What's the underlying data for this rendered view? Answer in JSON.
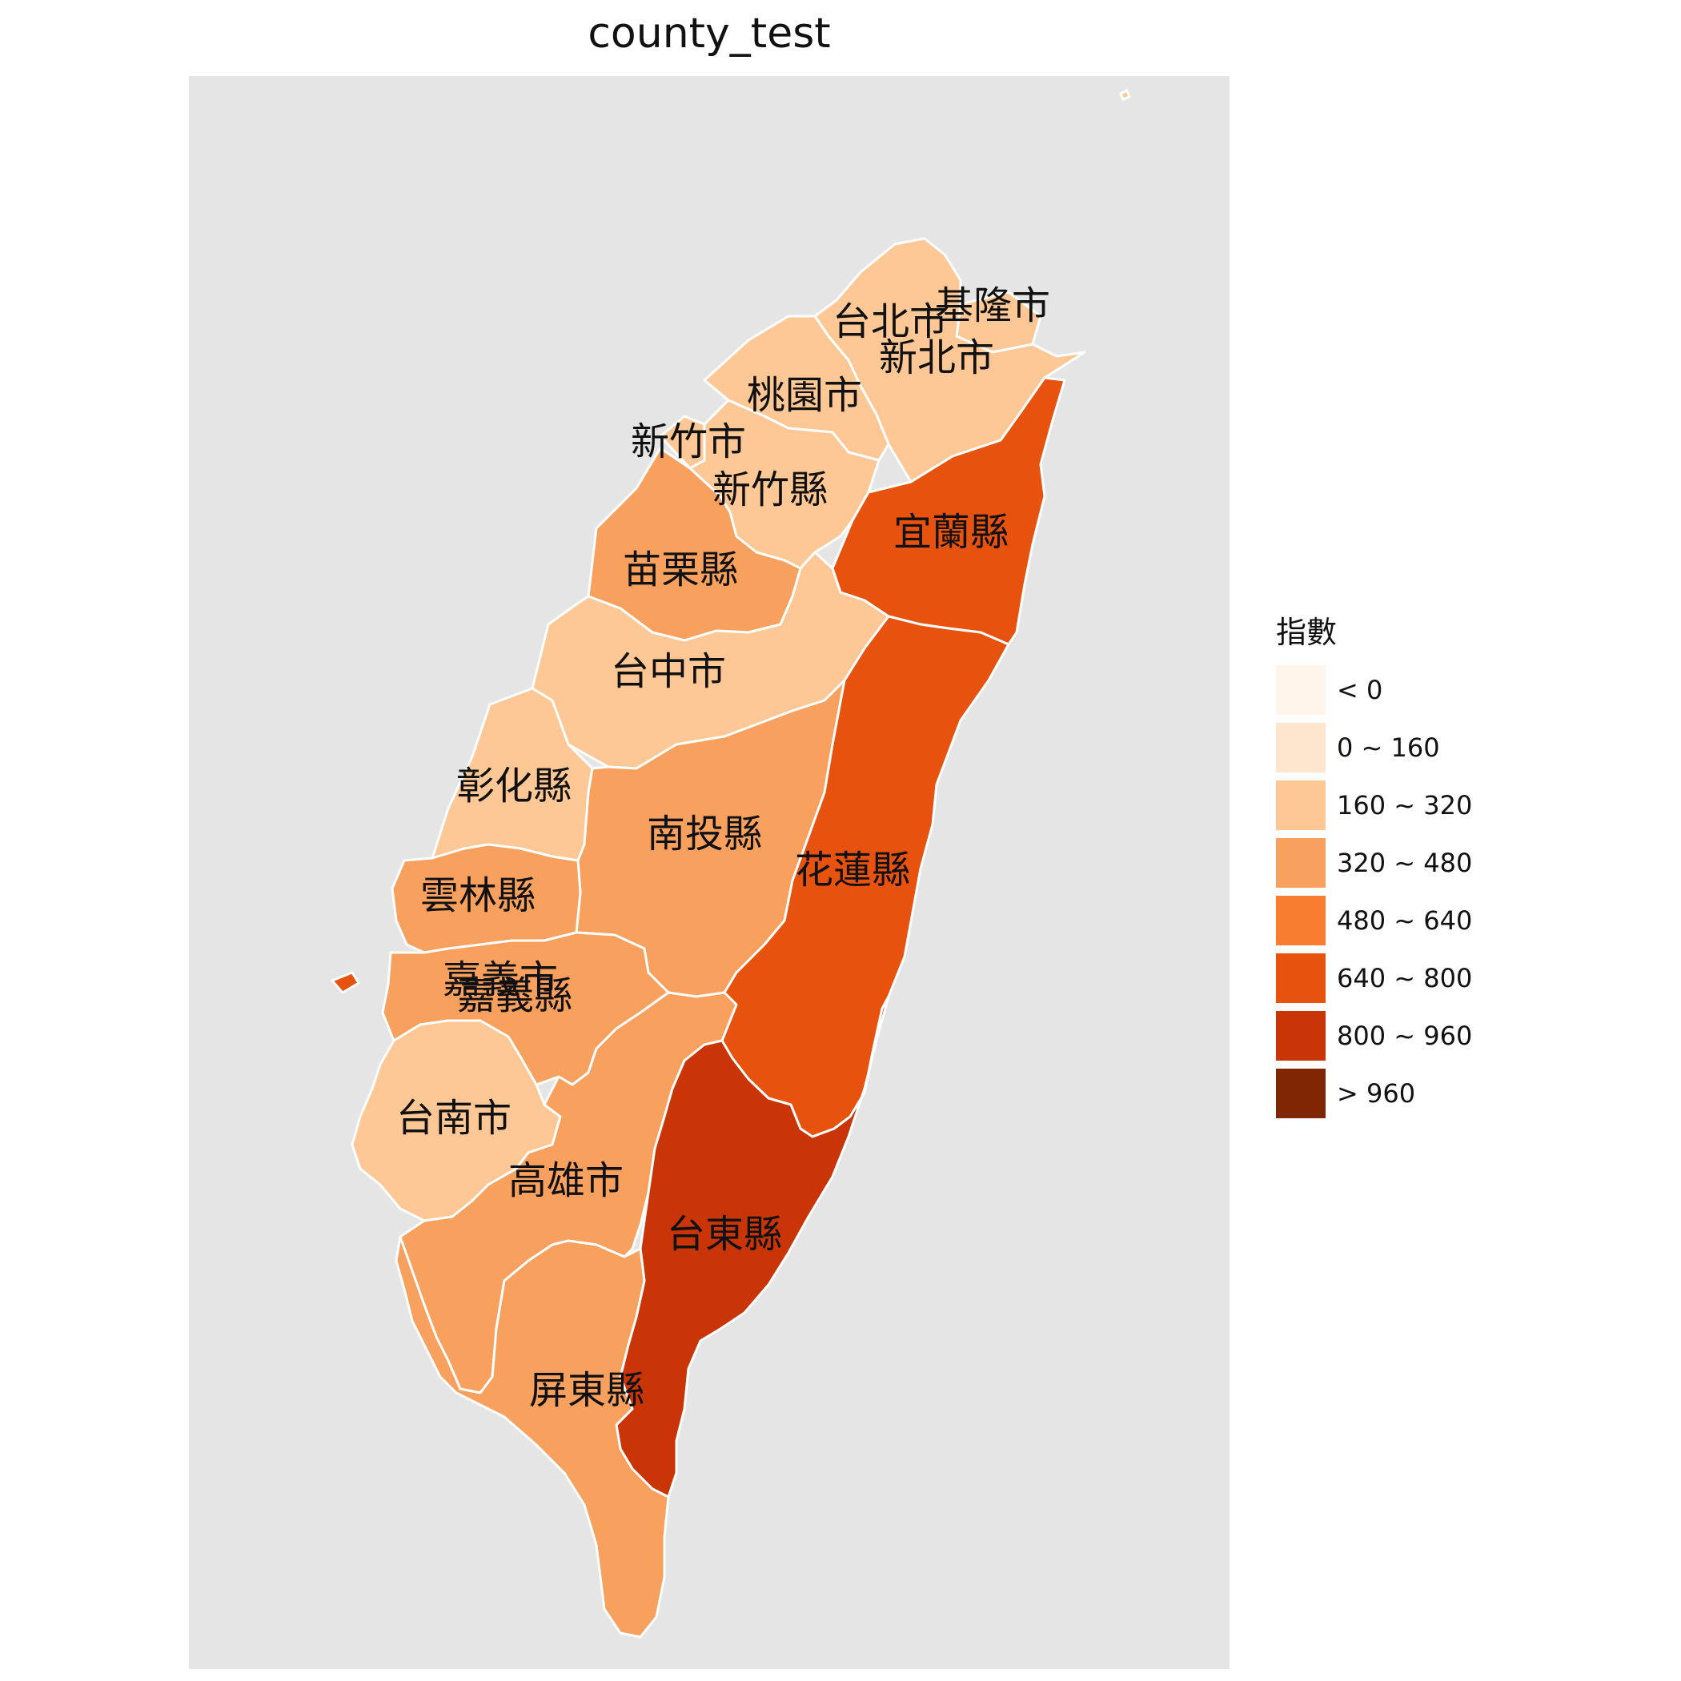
{
  "title": "county_test",
  "colors": {
    "panel_background": "#e5e5e5",
    "border": "#ffffff",
    "missing": "#4d4d4d"
  },
  "legend": {
    "title": "指數",
    "items": [
      {
        "label": "< 0",
        "color": "#fff5eb"
      },
      {
        "label": "0 ~ 160",
        "color": "#fee6ce"
      },
      {
        "label": "160 ~ 320",
        "color": "#fdc895"
      },
      {
        "label": "320 ~ 480",
        "color": "#f8a05e"
      },
      {
        "label": "480 ~ 640",
        "color": "#f87d31"
      },
      {
        "label": "640 ~ 800",
        "color": "#e8520f"
      },
      {
        "label": "800 ~ 960",
        "color": "#c93506"
      },
      {
        "label": "> 960",
        "color": "#7f2704"
      }
    ]
  },
  "chart_data": {
    "type": "choropleth",
    "title": "county_test",
    "legend_title": "指數",
    "legend_position": "right",
    "counties": [
      {
        "name": "基隆市",
        "class": "160 ~ 320"
      },
      {
        "name": "台北市",
        "class": "missing"
      },
      {
        "name": "新北市",
        "class": "160 ~ 320"
      },
      {
        "name": "桃園市",
        "class": "160 ~ 320"
      },
      {
        "name": "新竹市",
        "class": "160 ~ 320"
      },
      {
        "name": "新竹縣",
        "class": "160 ~ 320"
      },
      {
        "name": "宜蘭縣",
        "class": "640 ~ 800"
      },
      {
        "name": "苗栗縣",
        "class": "320 ~ 480"
      },
      {
        "name": "台中市",
        "class": "160 ~ 320"
      },
      {
        "name": "彰化縣",
        "class": "160 ~ 320"
      },
      {
        "name": "南投縣",
        "class": "320 ~ 480"
      },
      {
        "name": "花蓮縣",
        "class": "640 ~ 800"
      },
      {
        "name": "雲林縣",
        "class": "320 ~ 480"
      },
      {
        "name": "嘉義市",
        "class": "320 ~ 480"
      },
      {
        "name": "嘉義縣",
        "class": "320 ~ 480"
      },
      {
        "name": "台南市",
        "class": "160 ~ 320"
      },
      {
        "name": "高雄市",
        "class": "320 ~ 480"
      },
      {
        "name": "台東縣",
        "class": "800 ~ 960"
      },
      {
        "name": "屏東縣",
        "class": "320 ~ 480"
      },
      {
        "name": "澎湖縣",
        "class": "640 ~ 800"
      },
      {
        "name": "連江縣",
        "class": "160 ~ 320"
      }
    ]
  }
}
